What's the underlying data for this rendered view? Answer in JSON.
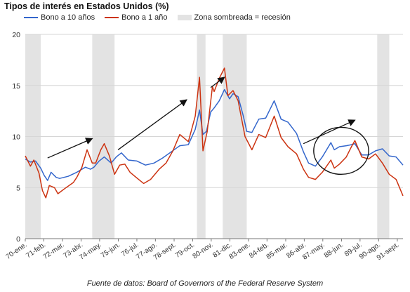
{
  "chart_data": {
    "type": "line",
    "title": "Tipos de interés en Estados Unidos (%)",
    "source": "Fuente de datos: Board of Governors of the Federal Reserve System",
    "ylim": [
      0,
      20
    ],
    "yticks": [
      0,
      5,
      10,
      15,
      20
    ],
    "xlim": [
      1970.0,
      1992.0
    ],
    "xticks": [
      {
        "label": "70-ene.",
        "x": 1970.0
      },
      {
        "label": "71-feb.",
        "x": 1971.08
      },
      {
        "label": "72-mar.",
        "x": 1972.17
      },
      {
        "label": "73-abr.",
        "x": 1973.25
      },
      {
        "label": "74-may.",
        "x": 1974.33
      },
      {
        "label": "75-jun.",
        "x": 1975.42
      },
      {
        "label": "76-jul.",
        "x": 1976.5
      },
      {
        "label": "77-ago.",
        "x": 1977.58
      },
      {
        "label": "78-sept.",
        "x": 1978.67
      },
      {
        "label": "79-oct.",
        "x": 1979.75
      },
      {
        "label": "80-nov.",
        "x": 1980.83
      },
      {
        "label": "81-dic.",
        "x": 1981.92
      },
      {
        "label": "83-ene.",
        "x": 1983.0
      },
      {
        "label": "84-feb.",
        "x": 1984.08
      },
      {
        "label": "85-mar.",
        "x": 1985.17
      },
      {
        "label": "86-abr.",
        "x": 1986.25
      },
      {
        "label": "87-may.",
        "x": 1987.33
      },
      {
        "label": "88-jun.",
        "x": 1988.42
      },
      {
        "label": "89-jul.",
        "x": 1989.5
      },
      {
        "label": "90-ago.",
        "x": 1990.58
      },
      {
        "label": "91-sept.",
        "x": 1991.67
      }
    ],
    "legend": [
      {
        "label": "Bono a 10 años",
        "color": "#3366cc",
        "kind": "line"
      },
      {
        "label": "Bono a 1 año",
        "color": "#cc3311",
        "kind": "line"
      },
      {
        "label": "Zona sombreada = recesión",
        "color": "#e3e3e3",
        "kind": "box"
      }
    ],
    "recessions": [
      [
        1970.0,
        1970.9
      ],
      [
        1973.9,
        1975.2
      ],
      [
        1980.0,
        1980.5
      ],
      [
        1981.5,
        1982.9
      ],
      [
        1990.5,
        1991.2
      ]
    ],
    "series": [
      {
        "name": "Bono a 10 años",
        "color": "#3366cc",
        "points": [
          [
            1970.0,
            7.8
          ],
          [
            1970.3,
            7.5
          ],
          [
            1970.6,
            7.6
          ],
          [
            1970.9,
            6.9
          ],
          [
            1971.1,
            6.2
          ],
          [
            1971.3,
            5.7
          ],
          [
            1971.5,
            6.5
          ],
          [
            1971.8,
            6.0
          ],
          [
            1972.0,
            5.9
          ],
          [
            1972.5,
            6.1
          ],
          [
            1973.0,
            6.5
          ],
          [
            1973.5,
            7.0
          ],
          [
            1973.8,
            6.8
          ],
          [
            1974.0,
            7.0
          ],
          [
            1974.3,
            7.6
          ],
          [
            1974.6,
            8.0
          ],
          [
            1975.0,
            7.4
          ],
          [
            1975.3,
            8.0
          ],
          [
            1975.6,
            8.4
          ],
          [
            1976.0,
            7.7
          ],
          [
            1976.5,
            7.6
          ],
          [
            1977.0,
            7.2
          ],
          [
            1977.5,
            7.4
          ],
          [
            1978.0,
            7.9
          ],
          [
            1978.5,
            8.5
          ],
          [
            1979.0,
            9.1
          ],
          [
            1979.5,
            9.2
          ],
          [
            1979.9,
            10.7
          ],
          [
            1980.15,
            12.6
          ],
          [
            1980.35,
            10.2
          ],
          [
            1980.55,
            10.5
          ],
          [
            1980.8,
            12.4
          ],
          [
            1981.0,
            12.8
          ],
          [
            1981.3,
            13.5
          ],
          [
            1981.6,
            14.6
          ],
          [
            1981.9,
            13.7
          ],
          [
            1982.1,
            14.2
          ],
          [
            1982.4,
            13.9
          ],
          [
            1982.7,
            12.0
          ],
          [
            1982.9,
            10.5
          ],
          [
            1983.2,
            10.4
          ],
          [
            1983.6,
            11.7
          ],
          [
            1984.0,
            11.8
          ],
          [
            1984.5,
            13.5
          ],
          [
            1984.9,
            11.7
          ],
          [
            1985.3,
            11.4
          ],
          [
            1985.8,
            10.3
          ],
          [
            1986.2,
            8.5
          ],
          [
            1986.5,
            7.4
          ],
          [
            1986.9,
            7.1
          ],
          [
            1987.3,
            8.0
          ],
          [
            1987.8,
            9.4
          ],
          [
            1988.0,
            8.7
          ],
          [
            1988.3,
            9.0
          ],
          [
            1988.7,
            9.1
          ],
          [
            1989.0,
            9.2
          ],
          [
            1989.2,
            9.3
          ],
          [
            1989.6,
            8.2
          ],
          [
            1990.0,
            8.2
          ],
          [
            1990.4,
            8.6
          ],
          [
            1990.8,
            8.8
          ],
          [
            1991.2,
            8.1
          ],
          [
            1991.6,
            8.0
          ],
          [
            1992.0,
            7.2
          ]
        ]
      },
      {
        "name": "Bono a 1 año",
        "color": "#cc3311",
        "points": [
          [
            1970.0,
            8.1
          ],
          [
            1970.3,
            7.1
          ],
          [
            1970.5,
            7.7
          ],
          [
            1970.8,
            6.4
          ],
          [
            1971.0,
            4.7
          ],
          [
            1971.2,
            4.0
          ],
          [
            1971.4,
            5.2
          ],
          [
            1971.7,
            5.0
          ],
          [
            1971.9,
            4.4
          ],
          [
            1972.3,
            4.9
          ],
          [
            1972.8,
            5.5
          ],
          [
            1973.0,
            6.0
          ],
          [
            1973.3,
            7.0
          ],
          [
            1973.6,
            8.7
          ],
          [
            1973.9,
            7.4
          ],
          [
            1974.1,
            7.4
          ],
          [
            1974.4,
            8.7
          ],
          [
            1974.6,
            9.3
          ],
          [
            1974.9,
            8.1
          ],
          [
            1975.2,
            6.3
          ],
          [
            1975.5,
            7.2
          ],
          [
            1975.8,
            7.3
          ],
          [
            1976.1,
            6.5
          ],
          [
            1976.6,
            5.8
          ],
          [
            1976.9,
            5.4
          ],
          [
            1977.3,
            5.8
          ],
          [
            1977.8,
            6.8
          ],
          [
            1978.2,
            7.4
          ],
          [
            1978.6,
            8.6
          ],
          [
            1979.0,
            10.2
          ],
          [
            1979.5,
            9.5
          ],
          [
            1979.9,
            12.0
          ],
          [
            1980.15,
            15.8
          ],
          [
            1980.35,
            8.6
          ],
          [
            1980.6,
            10.5
          ],
          [
            1980.9,
            14.9
          ],
          [
            1981.0,
            14.4
          ],
          [
            1981.3,
            15.7
          ],
          [
            1981.6,
            16.7
          ],
          [
            1981.8,
            14.0
          ],
          [
            1982.1,
            14.5
          ],
          [
            1982.4,
            13.5
          ],
          [
            1982.8,
            10.0
          ],
          [
            1983.2,
            8.7
          ],
          [
            1983.6,
            10.2
          ],
          [
            1984.0,
            9.9
          ],
          [
            1984.5,
            12.0
          ],
          [
            1984.9,
            9.9
          ],
          [
            1985.3,
            9.0
          ],
          [
            1985.8,
            8.3
          ],
          [
            1986.2,
            6.8
          ],
          [
            1986.5,
            6.0
          ],
          [
            1986.9,
            5.8
          ],
          [
            1987.3,
            6.5
          ],
          [
            1987.8,
            7.7
          ],
          [
            1988.0,
            6.9
          ],
          [
            1988.3,
            7.3
          ],
          [
            1988.7,
            8.0
          ],
          [
            1989.0,
            9.0
          ],
          [
            1989.2,
            9.6
          ],
          [
            1989.6,
            8.0
          ],
          [
            1990.0,
            7.8
          ],
          [
            1990.4,
            8.3
          ],
          [
            1990.8,
            7.4
          ],
          [
            1991.2,
            6.3
          ],
          [
            1991.6,
            5.8
          ],
          [
            1992.0,
            4.2
          ]
        ]
      }
    ],
    "annotations": {
      "arrows": [
        {
          "from": [
            1971.3,
            7.9
          ],
          "to": [
            1973.9,
            9.8
          ]
        },
        {
          "from": [
            1975.4,
            8.7
          ],
          "to": [
            1979.4,
            13.6
          ]
        },
        {
          "from": [
            1980.8,
            14.8
          ],
          "to": [
            1981.6,
            15.8
          ]
        },
        {
          "from": [
            1986.2,
            9.3
          ],
          "to": [
            1989.2,
            11.6
          ]
        }
      ],
      "ellipse": {
        "cx": 1988.4,
        "cy": 8.6,
        "rx": 1.6,
        "ry": 2.3
      }
    }
  }
}
